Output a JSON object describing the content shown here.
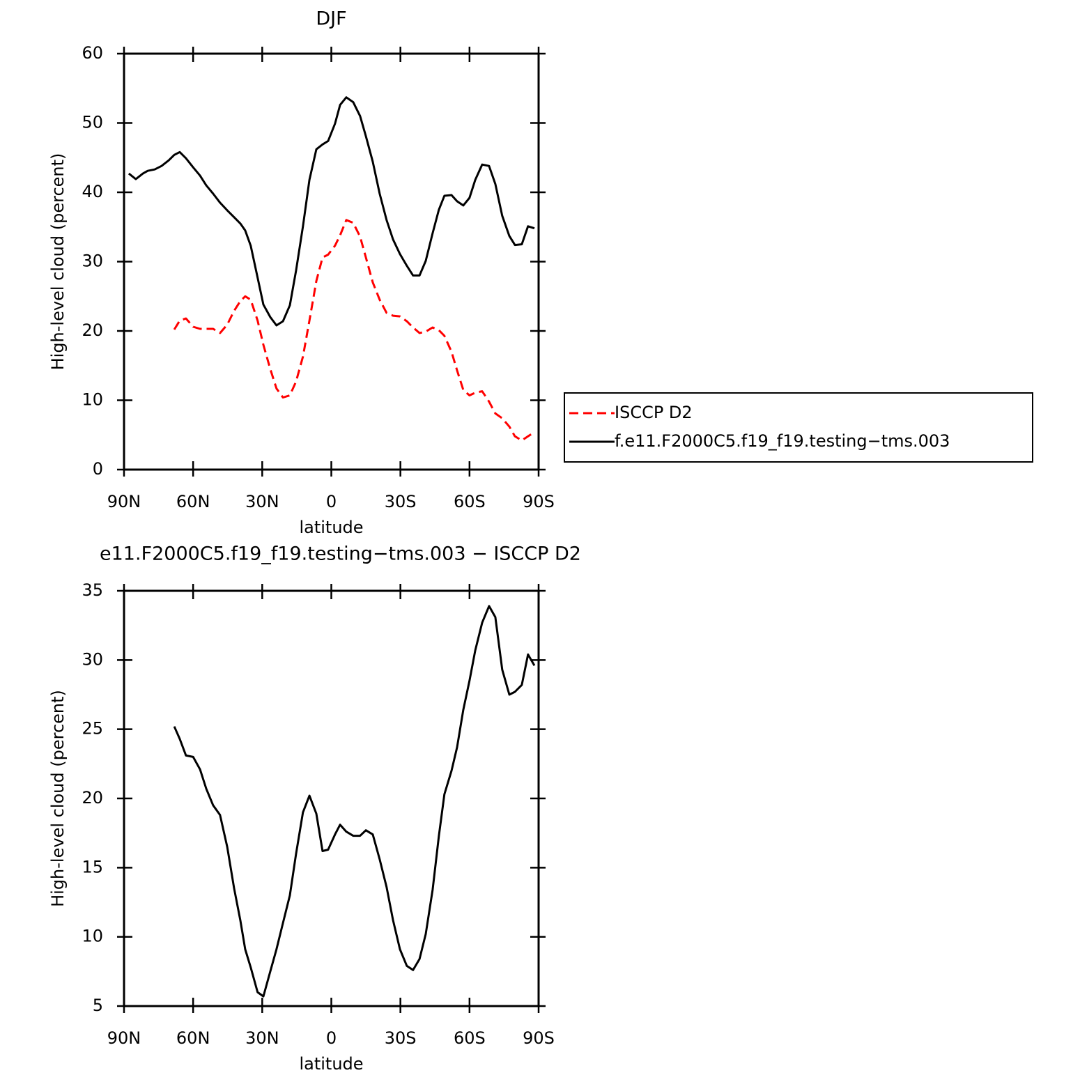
{
  "chart_data": [
    {
      "type": "line",
      "title": "DJF",
      "xlabel": "latitude",
      "ylabel": "High-level cloud (percent)",
      "x": [
        87.9,
        84.9,
        81.8,
        79.7,
        76.7,
        73.7,
        70.6,
        68.2,
        65.8,
        63.1,
        60,
        57,
        54.3,
        51.3,
        48.3,
        45.2,
        42.2,
        39.5,
        37.4,
        35,
        32,
        29.5,
        26.5,
        23.8,
        21,
        18,
        15.3,
        12.3,
        9.5,
        6.5,
        3.8,
        1.4,
        -1.6,
        -3.8,
        -6.5,
        -9.5,
        -12.5,
        -15,
        -18,
        -21,
        -24,
        -26.8,
        -29.8,
        -32.8,
        -35.5,
        -38.3,
        -41,
        -44,
        -46.7,
        -49.1,
        -52.2,
        -54.6,
        -57.3,
        -60,
        -62.5,
        -65.5,
        -68.5,
        -71.2,
        -74.2,
        -77.3,
        -79.7,
        -82.7,
        -85.4,
        -88.2
      ],
      "series": [
        {
          "name": "ISCCP D2",
          "color": "#ff0000",
          "dash": true,
          "values": [
            null,
            null,
            null,
            null,
            null,
            null,
            null,
            20.2,
            21.5,
            21.8,
            20.6,
            20.3,
            20.3,
            20.3,
            19.7,
            20.9,
            22.9,
            24.3,
            25.0,
            24.5,
            21.5,
            18.0,
            14.5,
            11.7,
            10.4,
            10.7,
            12.7,
            16.3,
            21.5,
            27.2,
            30.6,
            31.0,
            32.3,
            33.8,
            36.0,
            35.6,
            33.6,
            30.6,
            27.0,
            24.5,
            22.6,
            22.2,
            22.1,
            21.4,
            20.5,
            19.7,
            19.9,
            20.5,
            20.1,
            19.3,
            17.0,
            14.3,
            11.5,
            10.7,
            11.1,
            11.3,
            9.8,
            8.1,
            7.4,
            6.2,
            4.8,
            4.2,
            4.8,
            5.4
          ]
        },
        {
          "name": "f.e11.F2000C5.f19_f19.testing−tms.003",
          "color": "#000000",
          "dash": false,
          "values": [
            42.7,
            41.9,
            42.7,
            43.1,
            43.3,
            43.8,
            44.6,
            45.4,
            45.8,
            44.9,
            43.6,
            42.4,
            41.0,
            39.8,
            38.5,
            37.4,
            36.4,
            35.5,
            34.5,
            32.3,
            27.7,
            23.8,
            22.0,
            20.8,
            21.4,
            23.7,
            28.7,
            35.1,
            41.8,
            46.2,
            46.9,
            47.4,
            49.9,
            52.6,
            53.7,
            53.0,
            51.0,
            48.1,
            44.4,
            39.8,
            36.0,
            33.2,
            31.1,
            29.4,
            28.0,
            28.0,
            30.1,
            34.1,
            37.5,
            39.5,
            39.6,
            38.7,
            38.1,
            39.2,
            41.8,
            44.0,
            43.8,
            41.2,
            36.6,
            33.7,
            32.4,
            32.5,
            35.1,
            34.8
          ]
        }
      ],
      "xlim": [
        90,
        -90
      ],
      "xticks": [
        {
          "value": 90,
          "label": "90N"
        },
        {
          "value": 60,
          "label": "60N"
        },
        {
          "value": 30,
          "label": "30N"
        },
        0,
        {
          "value": -30,
          "label": "30S"
        },
        {
          "value": -60,
          "label": "60S"
        },
        {
          "value": -90,
          "label": "90S"
        }
      ],
      "ylim": [
        0,
        60
      ],
      "yticks": [
        0,
        10,
        20,
        30,
        40,
        50,
        60
      ],
      "legend": true
    },
    {
      "type": "line",
      "title": "e11.F2000C5.f19_f19.testing−tms.003 − ISCCP D2",
      "xlabel": "latitude",
      "ylabel": "High-level cloud (percent)",
      "x": [
        87.9,
        84.9,
        81.8,
        79.7,
        76.7,
        73.7,
        70.6,
        68.2,
        65.8,
        63.1,
        60,
        57,
        54.3,
        51.3,
        48.3,
        45.2,
        42.2,
        39.5,
        37.4,
        35,
        32,
        29.5,
        26.5,
        23.8,
        21,
        18,
        15.3,
        12.3,
        9.5,
        6.5,
        3.8,
        1.4,
        -1.6,
        -3.8,
        -6.5,
        -9.5,
        -12.5,
        -15,
        -18,
        -21,
        -24,
        -26.8,
        -29.8,
        -32.8,
        -35.5,
        -38.3,
        -41,
        -44,
        -46.7,
        -49.1,
        -52.2,
        -54.6,
        -57.3,
        -60,
        -62.5,
        -65.5,
        -68.5,
        -71.2,
        -74.2,
        -77.3,
        -79.7,
        -82.7,
        -85.4,
        -88.2
      ],
      "series": [
        {
          "color": "#000000",
          "dash": false,
          "values": [
            null,
            null,
            null,
            null,
            null,
            null,
            null,
            25.2,
            24.3,
            23.1,
            23.0,
            22.1,
            20.7,
            19.5,
            18.8,
            16.5,
            13.5,
            11.2,
            9.1,
            7.8,
            6.0,
            5.7,
            7.5,
            9.1,
            11.0,
            13.0,
            16.0,
            19.0,
            20.2,
            18.9,
            16.2,
            16.3,
            17.4,
            18.1,
            17.6,
            17.3,
            17.3,
            17.7,
            17.4,
            15.6,
            13.6,
            11.2,
            9.1,
            7.9,
            7.6,
            8.4,
            10.2,
            13.4,
            17.3,
            20.3,
            22.0,
            23.7,
            26.4,
            28.5,
            30.7,
            32.7,
            33.9,
            33.1,
            29.3,
            27.5,
            27.7,
            28.2,
            30.4,
            29.6
          ]
        }
      ],
      "xlim": [
        90,
        -90
      ],
      "xticks": [
        {
          "value": 90,
          "label": "90N"
        },
        {
          "value": 60,
          "label": "60N"
        },
        {
          "value": 30,
          "label": "30N"
        },
        0,
        {
          "value": -30,
          "label": "30S"
        },
        {
          "value": -60,
          "label": "60S"
        },
        {
          "value": -90,
          "label": "90S"
        }
      ],
      "ylim": [
        5,
        35
      ],
      "yticks": [
        5,
        10,
        15,
        20,
        25,
        30,
        35
      ],
      "legend": false
    }
  ]
}
